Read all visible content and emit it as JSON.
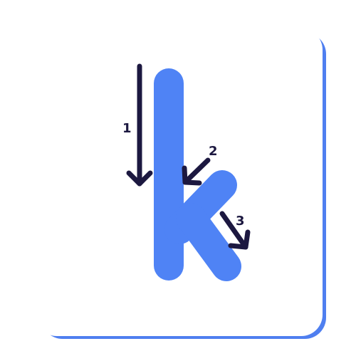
{
  "card": {
    "accent_color": "#4f83f5",
    "border_color": "#4f7ff0",
    "background_color": "#ffffff"
  },
  "letter": {
    "glyph": "k",
    "color": "#4f83f5"
  },
  "strokes": [
    {
      "number": "1",
      "direction": "down",
      "color": "#1c1840"
    },
    {
      "number": "2",
      "direction": "down-left",
      "color": "#1c1840"
    },
    {
      "number": "3",
      "direction": "down-right",
      "color": "#1c1840"
    }
  ]
}
